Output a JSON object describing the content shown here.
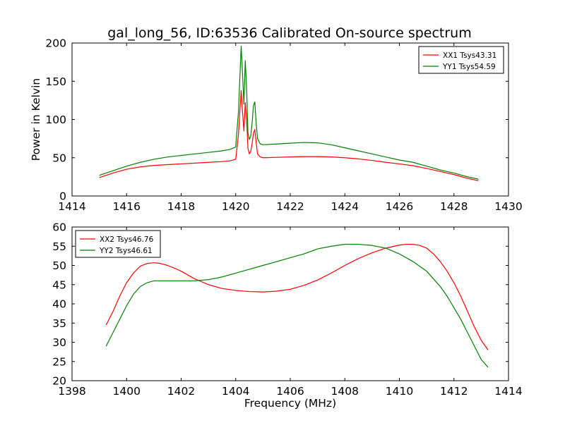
{
  "figure": {
    "title": "gal_long_56, ID:63536 Calibrated On-source spectrum"
  },
  "chart_data": [
    {
      "type": "line",
      "title": "gal_long_56, ID:63536 Calibrated On-source spectrum",
      "xlabel": "",
      "ylabel": "Power in Kelvin",
      "xlim": [
        1414,
        1430
      ],
      "ylim": [
        0,
        200
      ],
      "xticks": [
        "1414",
        "1416",
        "1418",
        "1420",
        "1422",
        "1424",
        "1426",
        "1428",
        "1430"
      ],
      "yticks": [
        "0",
        "50",
        "100",
        "150",
        "200"
      ],
      "legend_position": "top-right",
      "series": [
        {
          "name": "XX1 Tsys43.31",
          "color": "#ff0000",
          "x": [
            1415.0,
            1415.5,
            1416.0,
            1416.5,
            1417.0,
            1417.5,
            1418.0,
            1418.5,
            1419.0,
            1419.5,
            1419.8,
            1420.0,
            1420.1,
            1420.2,
            1420.25,
            1420.3,
            1420.35,
            1420.4,
            1420.45,
            1420.5,
            1420.55,
            1420.6,
            1420.65,
            1420.7,
            1420.75,
            1420.8,
            1420.9,
            1421.0,
            1421.5,
            1422.0,
            1422.5,
            1423.0,
            1423.5,
            1424.0,
            1424.5,
            1425.0,
            1425.5,
            1426.0,
            1426.5,
            1427.0,
            1427.5,
            1428.0,
            1428.5,
            1428.9
          ],
          "values": [
            24,
            30,
            35,
            38,
            40,
            41,
            42,
            43,
            44,
            45,
            46,
            48,
            80,
            138,
            110,
            85,
            122,
            100,
            62,
            55,
            58,
            68,
            82,
            87,
            70,
            55,
            51,
            50,
            50.5,
            51,
            51.5,
            51.5,
            51,
            50,
            48.5,
            46.5,
            44,
            42,
            39.5,
            36,
            32,
            28,
            23,
            20
          ]
        },
        {
          "name": "YY1 Tsys54.59",
          "color": "#008000",
          "x": [
            1415.0,
            1415.5,
            1416.0,
            1416.5,
            1417.0,
            1417.5,
            1418.0,
            1418.5,
            1419.0,
            1419.5,
            1419.8,
            1420.0,
            1420.1,
            1420.2,
            1420.25,
            1420.3,
            1420.35,
            1420.4,
            1420.45,
            1420.5,
            1420.55,
            1420.6,
            1420.65,
            1420.7,
            1420.75,
            1420.8,
            1420.9,
            1421.0,
            1421.5,
            1422.0,
            1422.5,
            1423.0,
            1423.5,
            1424.0,
            1424.5,
            1425.0,
            1425.5,
            1426.0,
            1426.5,
            1427.0,
            1427.5,
            1428.0,
            1428.5,
            1428.9
          ],
          "values": [
            27,
            33,
            39,
            44,
            48,
            51,
            53,
            55,
            57,
            59,
            61,
            64,
            110,
            196,
            160,
            120,
            177,
            140,
            82,
            74,
            78,
            95,
            118,
            123,
            95,
            75,
            68,
            67,
            68,
            69,
            70,
            69.5,
            67,
            63,
            59,
            55,
            51,
            47,
            44,
            39,
            34,
            30,
            25,
            22
          ]
        }
      ]
    },
    {
      "type": "line",
      "title": "",
      "xlabel": "Frequency (MHz)",
      "ylabel": "",
      "xlim": [
        1398,
        1414
      ],
      "ylim": [
        20,
        60
      ],
      "xticks": [
        "1398",
        "1400",
        "1402",
        "1404",
        "1406",
        "1408",
        "1410",
        "1412",
        "1414"
      ],
      "yticks": [
        "20",
        "25",
        "30",
        "35",
        "40",
        "45",
        "50",
        "55",
        "60"
      ],
      "legend_position": "top-left",
      "series": [
        {
          "name": "XX2 Tsys46.76",
          "color": "#ff0000",
          "x": [
            1399.25,
            1399.5,
            1399.75,
            1400.0,
            1400.25,
            1400.5,
            1400.75,
            1401.0,
            1401.25,
            1401.5,
            1401.75,
            1402.0,
            1402.5,
            1403.0,
            1403.5,
            1404.0,
            1404.5,
            1405.0,
            1405.5,
            1406.0,
            1406.5,
            1407.0,
            1407.5,
            1408.0,
            1408.5,
            1409.0,
            1409.5,
            1410.0,
            1410.25,
            1410.5,
            1410.75,
            1411.0,
            1411.25,
            1411.5,
            1411.75,
            1412.0,
            1412.25,
            1412.5,
            1412.75,
            1413.0,
            1413.25
          ],
          "values": [
            34.5,
            38,
            42,
            45.5,
            48,
            49.8,
            50.5,
            50.7,
            50.5,
            50,
            49.3,
            48.5,
            46.5,
            45,
            44,
            43.5,
            43.2,
            43.1,
            43.3,
            43.8,
            44.8,
            46.2,
            48,
            50,
            51.8,
            53.3,
            54.5,
            55.3,
            55.5,
            55.5,
            55.2,
            54.5,
            53,
            51,
            48.5,
            45.5,
            42,
            38,
            34,
            30.5,
            28
          ]
        },
        {
          "name": "YY2 Tsys46.61",
          "color": "#008000",
          "x": [
            1399.25,
            1399.5,
            1399.75,
            1400.0,
            1400.25,
            1400.5,
            1400.75,
            1401.0,
            1401.5,
            1402.0,
            1402.5,
            1403.0,
            1403.5,
            1404.0,
            1404.5,
            1405.0,
            1405.5,
            1406.0,
            1406.5,
            1407.0,
            1407.5,
            1408.0,
            1408.5,
            1409.0,
            1409.5,
            1410.0,
            1410.5,
            1411.0,
            1411.25,
            1411.5,
            1411.75,
            1412.0,
            1412.25,
            1412.5,
            1412.75,
            1413.0,
            1413.25
          ],
          "values": [
            29,
            32.5,
            36,
            39.5,
            42.5,
            44.5,
            45.5,
            46,
            46,
            46,
            46,
            46.3,
            47,
            48,
            49,
            50,
            51,
            52,
            53,
            54.3,
            55,
            55.5,
            55.5,
            55.2,
            54.5,
            53,
            51,
            48.5,
            46.5,
            44.5,
            42,
            39,
            36,
            32.5,
            29,
            25.5,
            23.5
          ]
        }
      ]
    }
  ]
}
